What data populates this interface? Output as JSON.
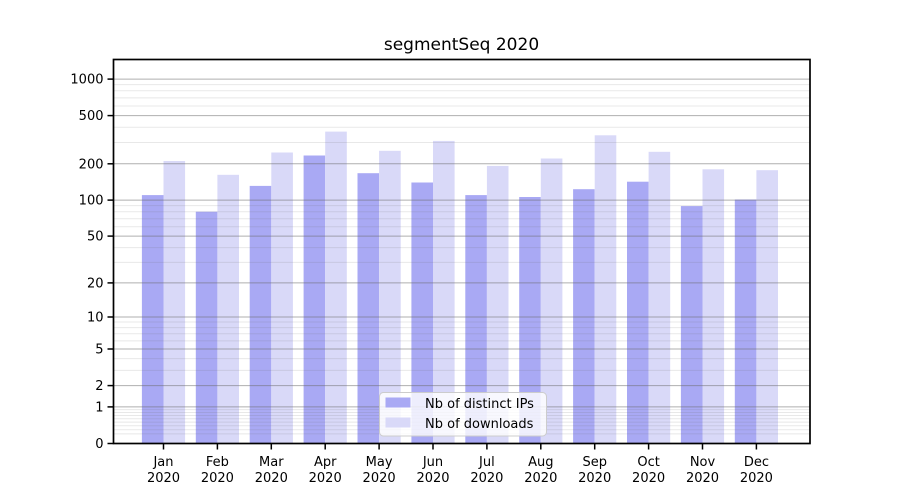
{
  "chart_data": {
    "type": "bar",
    "title": "segmentSeq 2020",
    "categories": [
      "Jan 2020",
      "Feb 2020",
      "Mar 2020",
      "Apr 2020",
      "May 2020",
      "Jun 2020",
      "Jul 2020",
      "Aug 2020",
      "Sep 2020",
      "Oct 2020",
      "Nov 2020",
      "Dec 2020"
    ],
    "x_tick_months": [
      "Jan",
      "Feb",
      "Mar",
      "Apr",
      "May",
      "Jun",
      "Jul",
      "Aug",
      "Sep",
      "Oct",
      "Nov",
      "Dec"
    ],
    "x_tick_year": "2020",
    "series": [
      {
        "name": "Nb of distinct IPs",
        "color": "#a9a9f4",
        "values": [
          110,
          80,
          131,
          234,
          167,
          140,
          110,
          106,
          123,
          142,
          89,
          101
        ]
      },
      {
        "name": "Nb of downloads",
        "color": "#d9d9f8",
        "values": [
          211,
          162,
          248,
          369,
          256,
          309,
          192,
          221,
          344,
          251,
          180,
          177
        ]
      }
    ],
    "y_scale": "log10(value+1)",
    "y_major_ticks": [
      0,
      1,
      2,
      5,
      10,
      20,
      50,
      100,
      200,
      500,
      1000
    ],
    "y_minor_ticks": [
      0.2,
      0.3,
      0.4,
      0.5,
      0.6,
      0.7,
      0.8,
      0.9,
      3,
      4,
      6,
      7,
      8,
      9,
      30,
      40,
      60,
      70,
      80,
      90,
      300,
      400,
      600,
      700,
      800,
      900
    ],
    "ylim": [
      0,
      1450
    ],
    "grid": {
      "on": true,
      "major_color": "rgba(110,110,110,0.55)",
      "minor_color": "rgba(110,110,110,0.16)"
    },
    "legend": {
      "position": "lower center"
    }
  }
}
